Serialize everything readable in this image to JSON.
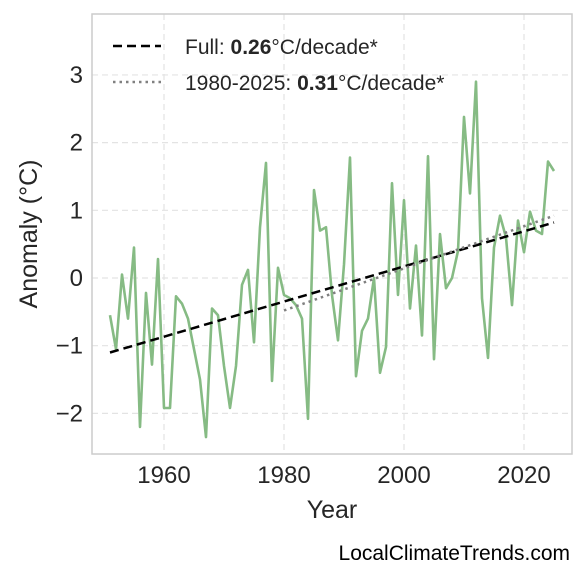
{
  "chart_data": {
    "type": "line",
    "xlabel": "Year",
    "ylabel": "Anomaly (°C)",
    "xlim": [
      1948,
      2028
    ],
    "ylim": [
      -2.6,
      3.9
    ],
    "x_ticks": [
      1960,
      1980,
      2000,
      2020
    ],
    "y_ticks": [
      -2,
      -1,
      0,
      1,
      2,
      3
    ],
    "y_tick_labels": [
      "−2",
      "−1",
      "0",
      "1",
      "2",
      "3"
    ],
    "grid": true,
    "legend_position": "top-left",
    "series": [
      {
        "type": "line",
        "color": "#86bb84",
        "x": [
          1951,
          1952,
          1953,
          1954,
          1955,
          1956,
          1957,
          1958,
          1959,
          1960,
          1961,
          1962,
          1963,
          1964,
          1965,
          1966,
          1967,
          1968,
          1969,
          1970,
          1971,
          1972,
          1973,
          1974,
          1975,
          1976,
          1977,
          1978,
          1979,
          1980,
          1981,
          1982,
          1983,
          1984,
          1985,
          1986,
          1987,
          1988,
          1989,
          1990,
          1991,
          1992,
          1993,
          1994,
          1995,
          1996,
          1997,
          1998,
          1999,
          2000,
          2001,
          2002,
          2003,
          2004,
          2005,
          2006,
          2007,
          2008,
          2009,
          2010,
          2011,
          2012,
          2013,
          2014,
          2015,
          2016,
          2017,
          2018,
          2019,
          2020,
          2021,
          2022,
          2023,
          2024,
          2025
        ],
        "values": [
          -0.55,
          -1.05,
          0.05,
          -0.6,
          0.45,
          -2.2,
          -0.22,
          -1.28,
          0.28,
          -1.92,
          -1.92,
          -0.27,
          -0.38,
          -0.6,
          -1.05,
          -1.5,
          -2.35,
          -0.45,
          -0.55,
          -1.3,
          -1.92,
          -1.3,
          -0.1,
          0.12,
          -0.95,
          0.75,
          1.7,
          -1.52,
          0.15,
          -0.25,
          -0.3,
          -0.4,
          -0.6,
          -2.08,
          1.3,
          0.7,
          0.75,
          -0.25,
          -0.92,
          0.2,
          1.78,
          -1.45,
          -0.78,
          -0.6,
          0.0,
          -1.4,
          -1.02,
          1.4,
          -0.25,
          1.15,
          -0.45,
          0.48,
          -0.85,
          1.8,
          -1.2,
          0.65,
          -0.15,
          0.0,
          0.4,
          2.38,
          1.25,
          2.9,
          -0.3,
          -1.18,
          0.45,
          0.92,
          0.6,
          -0.4,
          0.85,
          0.38,
          0.98,
          0.7,
          0.65,
          1.72,
          1.58
        ]
      },
      {
        "type": "trend",
        "name_prefix": "Full: ",
        "name_value": "0.26",
        "name_suffix": "°C/decade*",
        "color": "#000000",
        "style": "dashed",
        "x": [
          1951,
          2025
        ],
        "values": [
          -1.1,
          0.82
        ]
      },
      {
        "type": "trend",
        "name_prefix": "1980-2025: ",
        "name_value": "0.31",
        "name_suffix": "°C/decade*",
        "color": "#808080",
        "style": "dotted",
        "x": [
          1980,
          2025
        ],
        "values": [
          -0.48,
          0.92
        ]
      }
    ]
  },
  "footer": {
    "watermark": "LocalClimateTrends.com"
  }
}
